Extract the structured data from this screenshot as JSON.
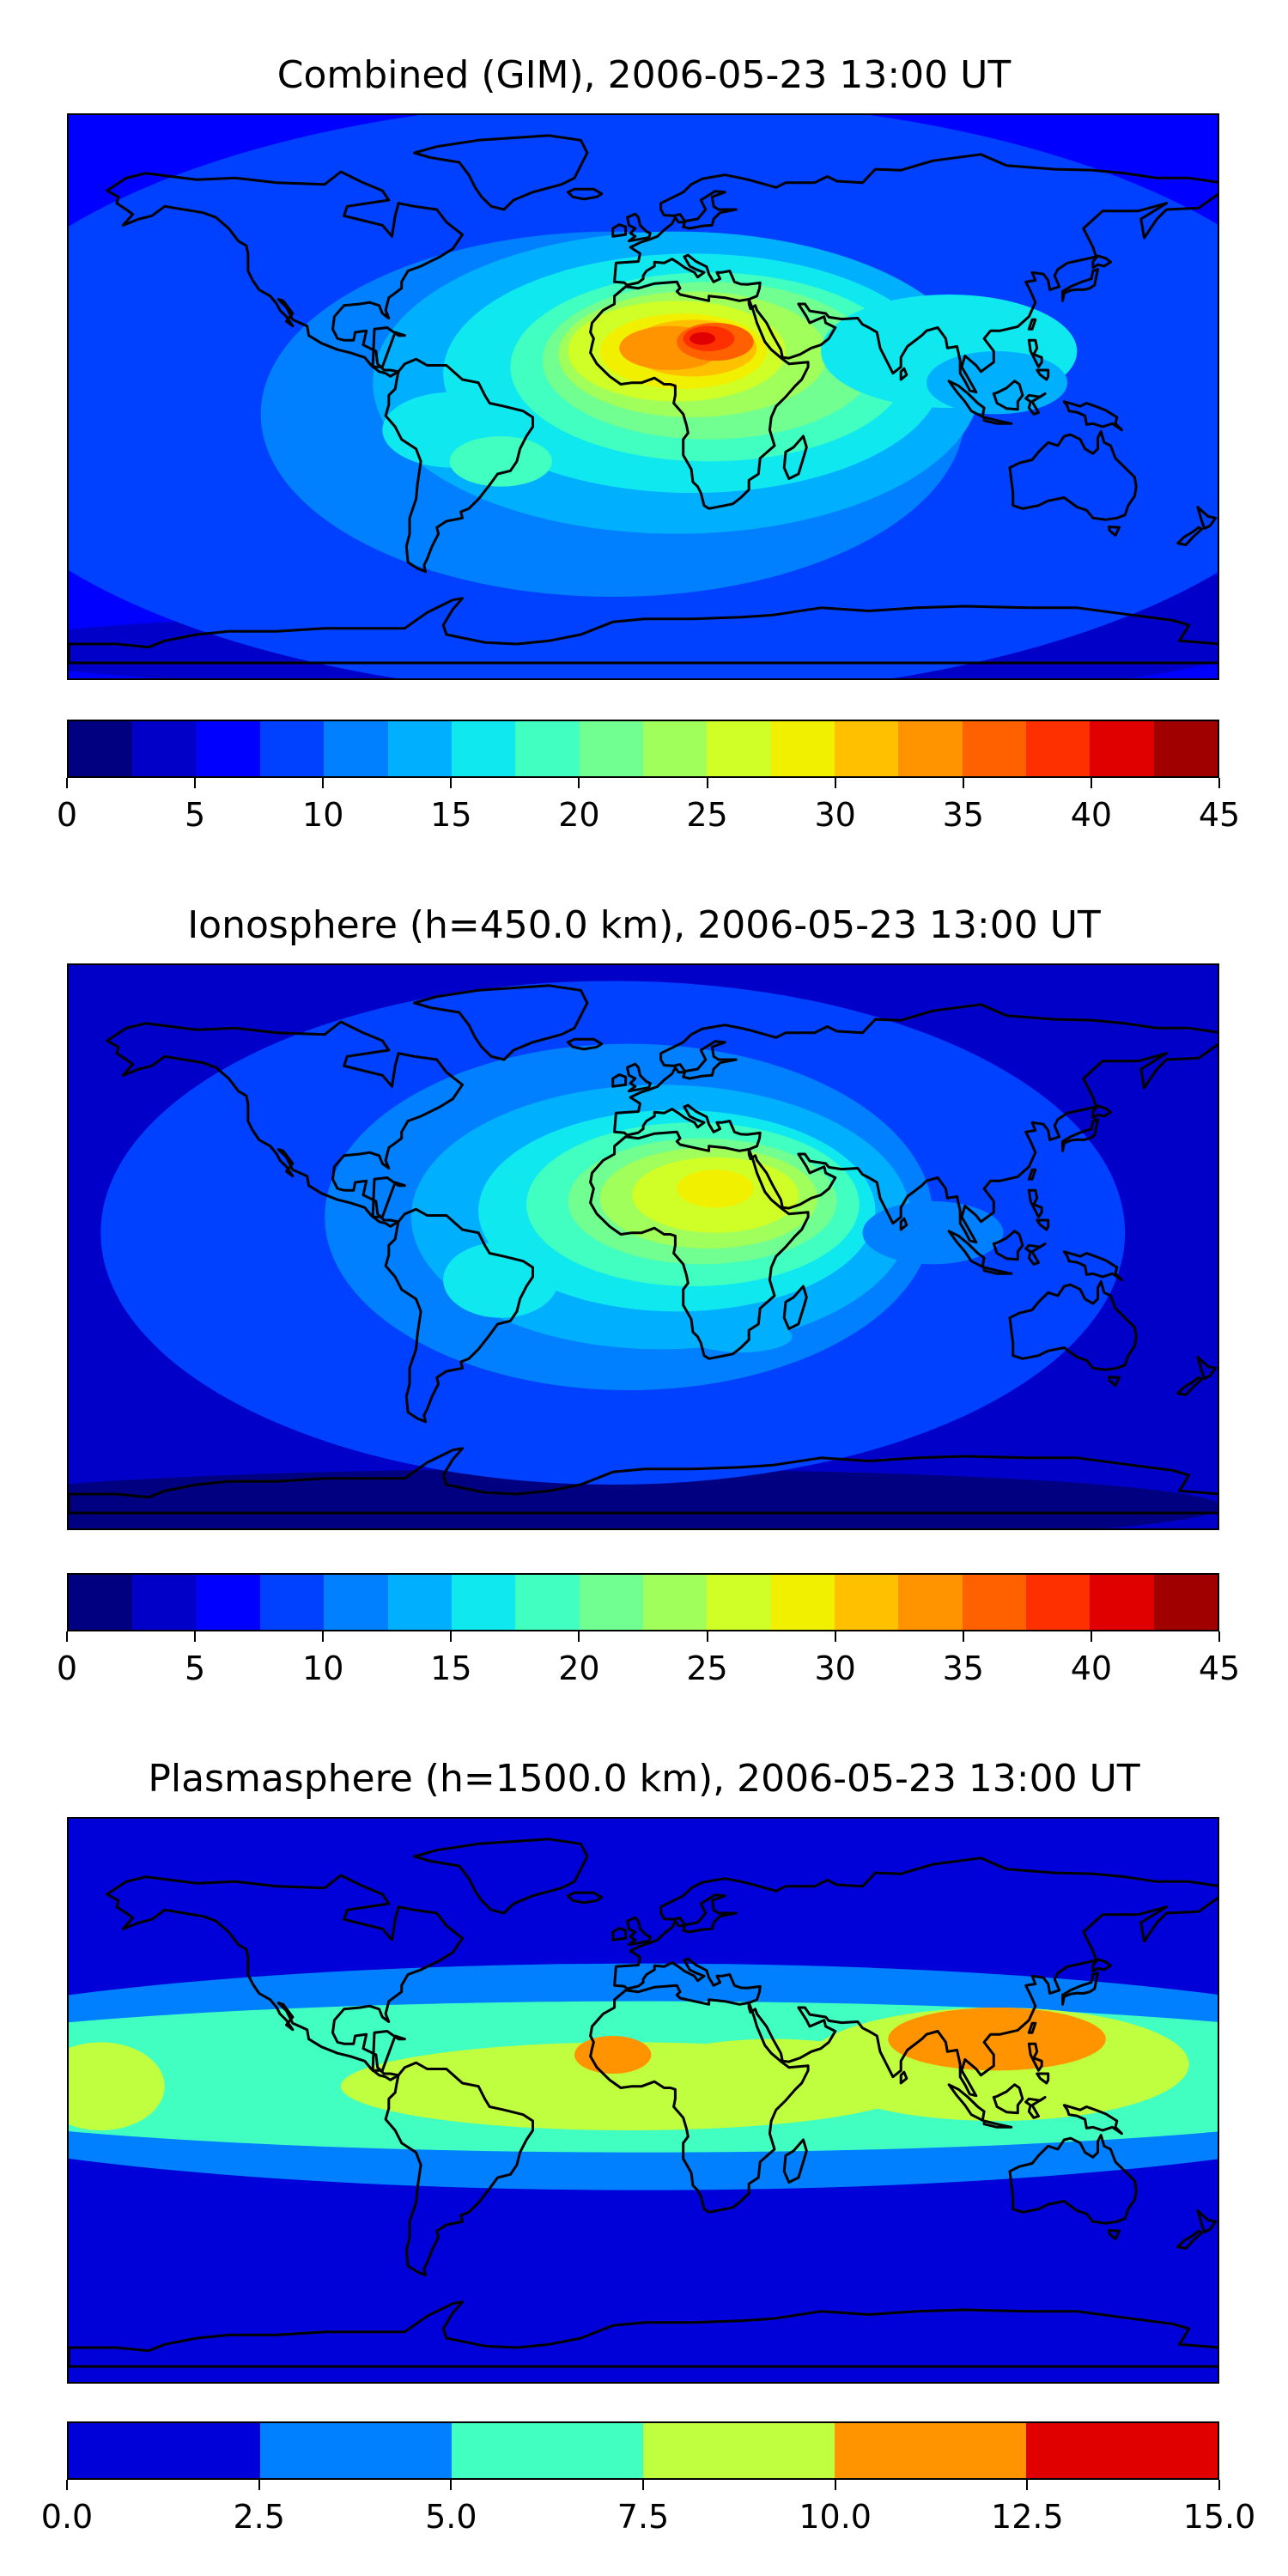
{
  "chart_data": [
    {
      "type": "heatmap",
      "subtype": "filled contour map (equirectangular world projection with coastlines)",
      "title": "Combined (GIM), 2006-05-23 13:00 UT",
      "colorbar": {
        "levels": [
          0,
          2.5,
          5,
          7.5,
          10,
          12.5,
          15,
          17.5,
          20,
          22.5,
          25,
          27.5,
          30,
          32.5,
          35,
          37.5,
          40,
          42.5,
          45
        ],
        "tick_labels": [
          "0",
          "5",
          "10",
          "15",
          "20",
          "25",
          "30",
          "35",
          "40",
          "45"
        ],
        "colors": [
          "#000080",
          "#0000c8",
          "#0000ff",
          "#0040ff",
          "#0080ff",
          "#00b0ff",
          "#10e8f0",
          "#40ffc0",
          "#70ff90",
          "#a0ff5a",
          "#d0ff28",
          "#f0f000",
          "#ffc000",
          "#ff9400",
          "#ff6000",
          "#ff3000",
          "#e00000",
          "#a00000"
        ]
      },
      "field_summary": {
        "background_range": [
          5,
          10
        ],
        "low_regions": [
          {
            "area": "eastern Pacific",
            "value": 7.5
          },
          {
            "area": "southern high latitudes / Antarctica",
            "value": 2.5
          },
          {
            "area": "southern Indian Ocean",
            "value": 5
          }
        ],
        "peak": {
          "area": "North Africa / Sahara",
          "value": 40
        },
        "crest_band": {
          "area": "tropical Atlantic - Africa - Indian Ocean",
          "range": [
            22.5,
            37.5
          ]
        }
      }
    },
    {
      "type": "heatmap",
      "subtype": "filled contour map (equirectangular world projection with coastlines)",
      "title": "Ionosphere  (h=450.0 km), 2006-05-23 13:00 UT",
      "colorbar": {
        "levels": [
          0,
          2.5,
          5,
          7.5,
          10,
          12.5,
          15,
          17.5,
          20,
          22.5,
          25,
          27.5,
          30,
          32.5,
          35,
          37.5,
          40,
          42.5,
          45
        ],
        "tick_labels": [
          "0",
          "5",
          "10",
          "15",
          "20",
          "25",
          "30",
          "35",
          "40",
          "45"
        ],
        "colors": [
          "#000080",
          "#0000c8",
          "#0000ff",
          "#0040ff",
          "#0080ff",
          "#00b0ff",
          "#10e8f0",
          "#40ffc0",
          "#70ff90",
          "#a0ff5a",
          "#d0ff28",
          "#f0f000",
          "#ffc000",
          "#ff9400",
          "#ff6000",
          "#ff3000",
          "#e00000",
          "#a00000"
        ]
      },
      "field_summary": {
        "background_range": [
          2.5,
          7.5
        ],
        "low_regions": [
          {
            "area": "Pacific",
            "value": 5
          },
          {
            "area": "southern high latitudes",
            "value": 2.5
          }
        ],
        "peak": {
          "area": "northeastern Africa",
          "value": 30
        },
        "crest_band": {
          "area": "South America - Africa - Indian Ocean",
          "range": [
            15,
            27.5
          ]
        }
      }
    },
    {
      "type": "heatmap",
      "subtype": "filled contour map (equirectangular world projection with coastlines)",
      "title": "Plasmasphere (h=1500.0 km), 2006-05-23 13:00 UT",
      "colorbar": {
        "levels": [
          0,
          2.5,
          5,
          7.5,
          10,
          12.5,
          15
        ],
        "tick_labels": [
          "0.0",
          "2.5",
          "5.0",
          "7.5",
          "10.0",
          "12.5",
          "15.0"
        ],
        "colors": [
          "#0000d8",
          "#0080ff",
          "#40ffc0",
          "#c0ff40",
          "#ff9400",
          "#e00000"
        ]
      },
      "field_summary": {
        "background_range": [
          0,
          2.5
        ],
        "low_regions": [
          {
            "area": "north and south high latitudes",
            "value": 0
          }
        ],
        "peak": {
          "area": "West Africa and western Pacific / Asia",
          "value": 10
        },
        "crest_band": {
          "area": "low latitudes, all longitudes",
          "range": [
            5,
            10
          ]
        }
      }
    }
  ]
}
